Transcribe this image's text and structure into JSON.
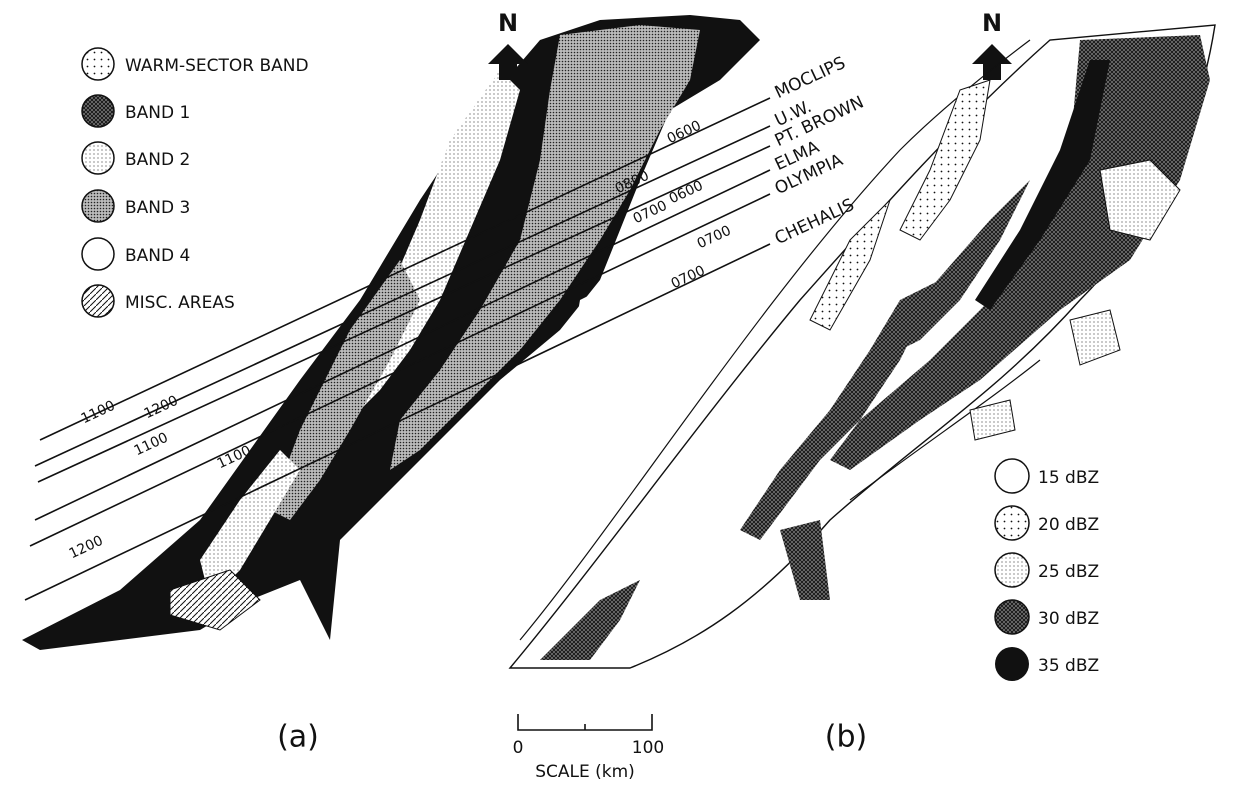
{
  "panel_a": {
    "north": "N",
    "legend": [
      "WARM-SECTOR BAND",
      "BAND 1",
      "BAND 2",
      "BAND 3",
      "BAND 4",
      "MISC. AREAS"
    ],
    "stations": [
      "MOCLIPS",
      "U.W.",
      "PT. BROWN",
      "ELMA",
      "OLYMPIA",
      "CHEHALIS"
    ],
    "times": [
      "0600",
      "0800",
      "0700",
      "0600",
      "0700",
      "0700",
      "1100",
      "1200",
      "1100",
      "1100",
      "1200"
    ],
    "label": "(a)"
  },
  "panel_b": {
    "north": "N",
    "legend": [
      "15 dBZ",
      "20 dBZ",
      "25 dBZ",
      "30 dBZ",
      "35 dBZ"
    ],
    "label": "(b)"
  },
  "scale": {
    "ticks": [
      "0",
      "100"
    ],
    "title": "SCALE (km)"
  }
}
